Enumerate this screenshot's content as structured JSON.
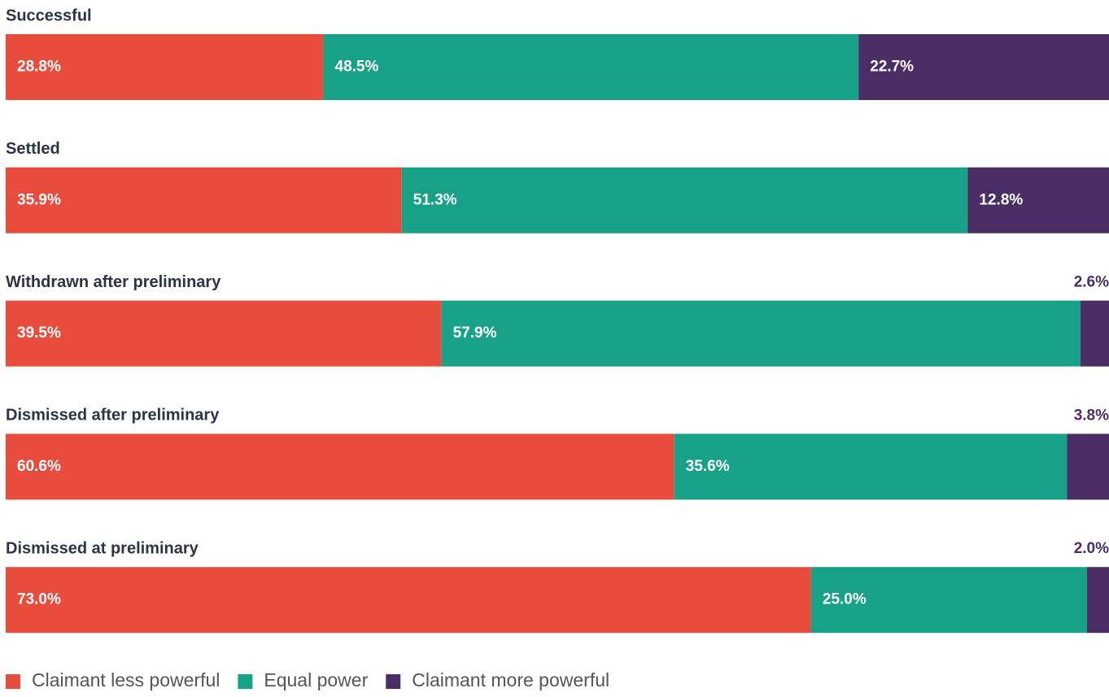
{
  "chart_data": {
    "type": "stacked-bar",
    "orientation": "horizontal",
    "categories": [
      "Successful",
      "Settled",
      "Withdrawn after preliminary",
      "Dismissed after preliminary",
      "Dismissed at preliminary"
    ],
    "xlim": [
      0,
      100
    ],
    "legend": "bottom-left",
    "series": [
      {
        "name": "Claimant less powerful",
        "color": "#e84c3d",
        "values": [
          28.8,
          35.9,
          39.5,
          60.6,
          73.0
        ],
        "value_labels": [
          "28.8%",
          "35.9%",
          "39.5%",
          "60.6%",
          "73.0%"
        ]
      },
      {
        "name": "Equal power",
        "color": "#17a287",
        "values": [
          48.5,
          51.3,
          57.9,
          35.6,
          25.0
        ],
        "value_labels": [
          "48.5%",
          "51.3%",
          "57.9%",
          "35.6%",
          "25.0%"
        ]
      },
      {
        "name": "Claimant more powerful",
        "color": "#4b2d66",
        "values": [
          22.7,
          12.8,
          2.6,
          3.8,
          2.0
        ],
        "value_labels": [
          "22.7%",
          "12.8%",
          "2.6%",
          "3.8%",
          "2.0%"
        ]
      }
    ]
  }
}
